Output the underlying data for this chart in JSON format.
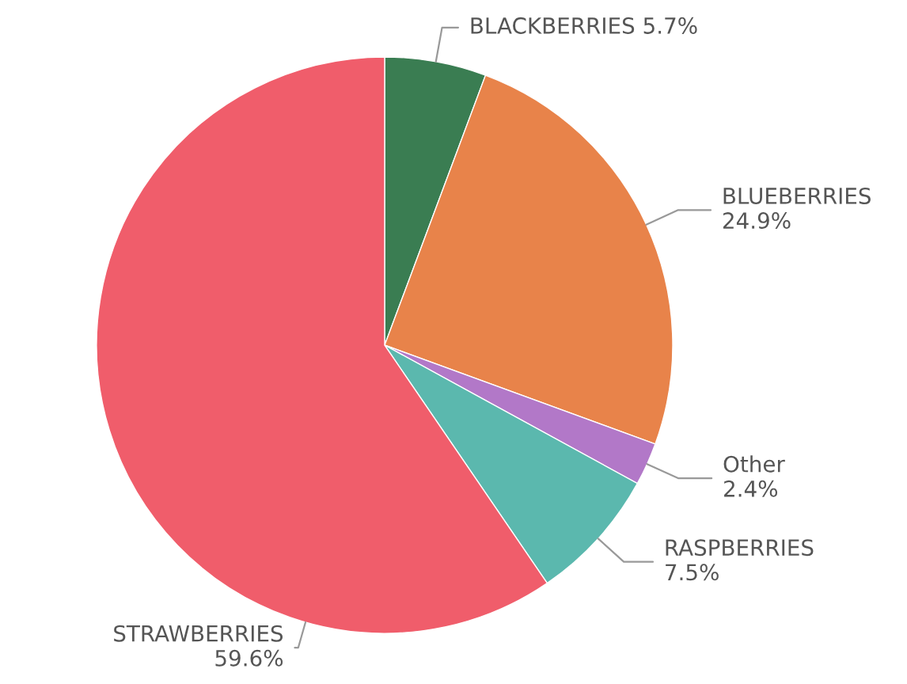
{
  "chart_data": {
    "type": "pie",
    "categories": [
      "BLACKBERRIES",
      "BLUEBERRIES",
      "Other",
      "RASPBERRIES",
      "STRAWBERRIES"
    ],
    "values": [
      5.7,
      24.9,
      2.4,
      7.5,
      59.6
    ],
    "value_labels": [
      "5.7%",
      "24.9%",
      "2.4%",
      "7.5%",
      "59.6%"
    ],
    "colors": [
      "#3a7d52",
      "#e8834a",
      "#b278c8",
      "#5bb8ae",
      "#f05d6b"
    ]
  }
}
